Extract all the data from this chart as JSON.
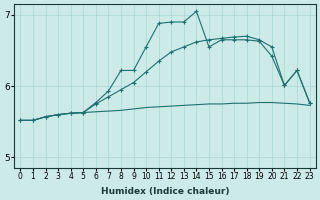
{
  "xlabel": "Humidex (Indice chaleur)",
  "ylabel": "",
  "xlim": [
    -0.5,
    23.5
  ],
  "ylim": [
    4.85,
    7.15
  ],
  "yticks": [
    5,
    6,
    7
  ],
  "xticks": [
    0,
    1,
    2,
    3,
    4,
    5,
    6,
    7,
    8,
    9,
    10,
    11,
    12,
    13,
    14,
    15,
    16,
    17,
    18,
    19,
    20,
    21,
    22,
    23
  ],
  "bg_color": "#cceae8",
  "grid_color": "#a8d5d3",
  "line_color": "#1e7070",
  "line1_x": [
    0,
    1,
    2,
    3,
    4,
    5,
    6,
    7,
    8,
    9,
    10,
    11,
    12,
    13,
    14,
    15,
    16,
    17,
    18,
    19,
    20,
    21,
    22,
    23
  ],
  "line1_y": [
    5.52,
    5.52,
    5.57,
    5.6,
    5.62,
    5.63,
    5.64,
    5.65,
    5.66,
    5.68,
    5.7,
    5.71,
    5.72,
    5.73,
    5.74,
    5.75,
    5.75,
    5.76,
    5.76,
    5.77,
    5.77,
    5.76,
    5.75,
    5.73
  ],
  "line2_x": [
    0,
    1,
    2,
    3,
    4,
    5,
    6,
    7,
    8,
    9,
    10,
    11,
    12,
    13,
    14,
    15,
    16,
    17,
    18,
    19,
    20,
    21,
    22,
    23
  ],
  "line2_y": [
    5.52,
    5.52,
    5.57,
    5.6,
    5.62,
    5.63,
    5.75,
    5.85,
    5.95,
    6.05,
    6.2,
    6.35,
    6.48,
    6.55,
    6.62,
    6.65,
    6.67,
    6.69,
    6.7,
    6.65,
    6.55,
    6.01,
    6.22,
    5.77
  ],
  "line3_x": [
    0,
    1,
    2,
    3,
    4,
    5,
    6,
    7,
    8,
    9,
    10,
    11,
    12,
    13,
    14,
    15,
    16,
    17,
    18,
    19,
    20,
    21,
    22,
    23
  ],
  "line3_y": [
    5.52,
    5.52,
    5.57,
    5.6,
    5.62,
    5.63,
    5.77,
    5.93,
    6.22,
    6.22,
    6.55,
    6.88,
    6.9,
    6.9,
    7.05,
    6.55,
    6.65,
    6.65,
    6.65,
    6.63,
    6.42,
    6.01,
    6.22,
    5.77
  ]
}
